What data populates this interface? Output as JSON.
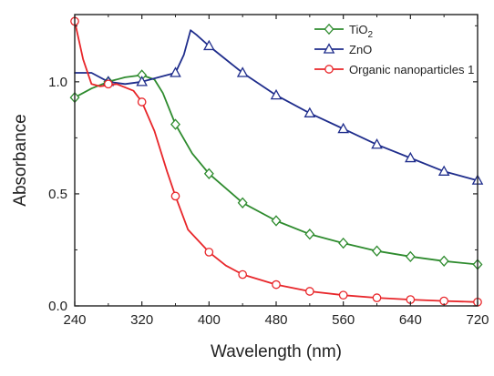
{
  "chart_data": {
    "type": "line",
    "xlabel": "Wavelength (nm)",
    "ylabel": "Absorbance",
    "xlim": [
      240,
      720
    ],
    "ylim": [
      0.0,
      1.3
    ],
    "x_ticks": [
      240,
      320,
      400,
      480,
      560,
      640,
      720
    ],
    "x_tick_labels": [
      "240",
      "320",
      "400",
      "480",
      "560",
      "640",
      "720"
    ],
    "y_ticks": [
      0.0,
      0.5,
      1.0
    ],
    "y_tick_labels": [
      "0.0",
      "0.5",
      "1.0"
    ],
    "grid": false,
    "legend_position": "top-right",
    "series": [
      {
        "name_parts": [
          "TiO",
          "2"
        ],
        "color": "#2e8b2e",
        "marker": "diamond",
        "curve": [
          [
            240,
            0.93
          ],
          [
            260,
            0.97
          ],
          [
            280,
            1.0
          ],
          [
            300,
            1.02
          ],
          [
            320,
            1.03
          ],
          [
            335,
            1.01
          ],
          [
            345,
            0.95
          ],
          [
            360,
            0.81
          ],
          [
            380,
            0.68
          ],
          [
            400,
            0.59
          ],
          [
            440,
            0.46
          ],
          [
            480,
            0.38
          ],
          [
            520,
            0.32
          ],
          [
            560,
            0.28
          ],
          [
            600,
            0.245
          ],
          [
            640,
            0.22
          ],
          [
            680,
            0.2
          ],
          [
            720,
            0.185
          ]
        ],
        "markers": [
          [
            240,
            0.93
          ],
          [
            280,
            1.0
          ],
          [
            320,
            1.03
          ],
          [
            360,
            0.81
          ],
          [
            400,
            0.59
          ],
          [
            440,
            0.46
          ],
          [
            480,
            0.38
          ],
          [
            520,
            0.32
          ],
          [
            560,
            0.28
          ],
          [
            600,
            0.245
          ],
          [
            640,
            0.22
          ],
          [
            680,
            0.2
          ],
          [
            720,
            0.185
          ]
        ]
      },
      {
        "name": "ZnO",
        "color": "#1f2d8c",
        "marker": "triangle",
        "curve": [
          [
            240,
            1.04
          ],
          [
            260,
            1.04
          ],
          [
            280,
            1.0
          ],
          [
            300,
            0.99
          ],
          [
            320,
            1.0
          ],
          [
            340,
            1.02
          ],
          [
            360,
            1.04
          ],
          [
            370,
            1.12
          ],
          [
            378,
            1.23
          ],
          [
            385,
            1.21
          ],
          [
            400,
            1.16
          ],
          [
            440,
            1.04
          ],
          [
            480,
            0.94
          ],
          [
            520,
            0.86
          ],
          [
            560,
            0.79
          ],
          [
            600,
            0.72
          ],
          [
            640,
            0.66
          ],
          [
            680,
            0.6
          ],
          [
            720,
            0.56
          ]
        ],
        "markers": [
          [
            280,
            1.0
          ],
          [
            320,
            1.0
          ],
          [
            360,
            1.04
          ],
          [
            400,
            1.16
          ],
          [
            440,
            1.04
          ],
          [
            480,
            0.94
          ],
          [
            520,
            0.86
          ],
          [
            560,
            0.79
          ],
          [
            600,
            0.72
          ],
          [
            640,
            0.66
          ],
          [
            680,
            0.6
          ],
          [
            720,
            0.56
          ]
        ]
      },
      {
        "name": "Organic nanoparticles 1",
        "color": "#e8262a",
        "marker": "circle",
        "curve": [
          [
            240,
            1.27
          ],
          [
            250,
            1.1
          ],
          [
            260,
            0.99
          ],
          [
            270,
            0.98
          ],
          [
            290,
            0.99
          ],
          [
            310,
            0.96
          ],
          [
            320,
            0.91
          ],
          [
            335,
            0.78
          ],
          [
            350,
            0.6
          ],
          [
            360,
            0.49
          ],
          [
            375,
            0.34
          ],
          [
            400,
            0.24
          ],
          [
            420,
            0.18
          ],
          [
            440,
            0.14
          ],
          [
            480,
            0.095
          ],
          [
            520,
            0.065
          ],
          [
            560,
            0.048
          ],
          [
            600,
            0.036
          ],
          [
            640,
            0.028
          ],
          [
            680,
            0.022
          ],
          [
            720,
            0.017
          ]
        ],
        "markers": [
          [
            240,
            1.27
          ],
          [
            280,
            0.99
          ],
          [
            320,
            0.91
          ],
          [
            360,
            0.49
          ],
          [
            400,
            0.24
          ],
          [
            440,
            0.14
          ],
          [
            480,
            0.095
          ],
          [
            520,
            0.065
          ],
          [
            560,
            0.048
          ],
          [
            600,
            0.036
          ],
          [
            640,
            0.028
          ],
          [
            680,
            0.022
          ],
          [
            720,
            0.017
          ]
        ]
      }
    ]
  }
}
